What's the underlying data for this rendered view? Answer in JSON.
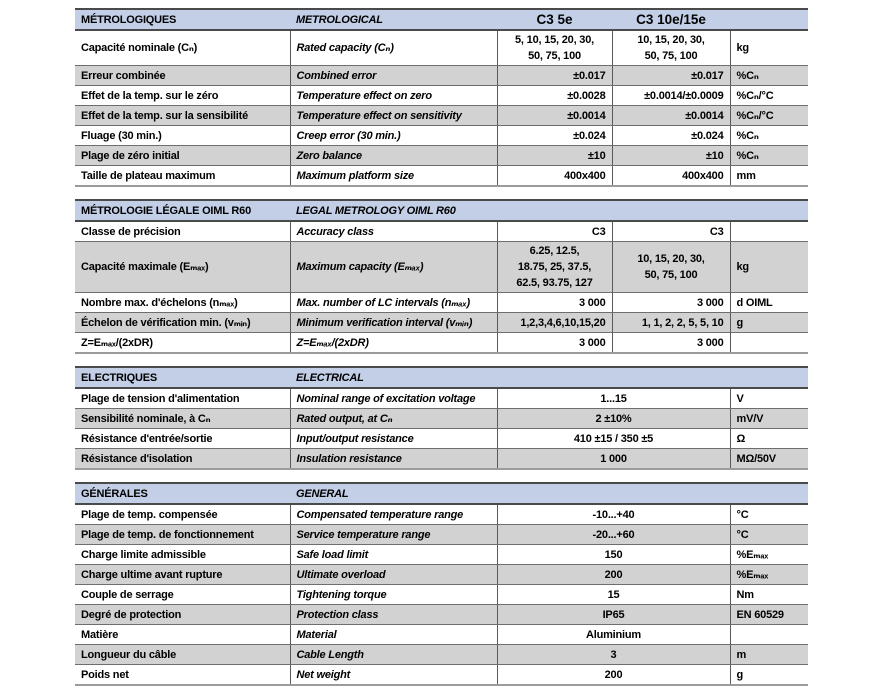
{
  "models": {
    "m1": "C3 5e",
    "m2": "C3 10e/15e"
  },
  "colors": {
    "header_bg": "#c3cfe7",
    "row_alt_bg": "#d2d2d2",
    "border_dark": "#4a4a4a",
    "border_mid": "#6e6e6e"
  },
  "sections": [
    {
      "id": "metrologiques",
      "title_fr": "MÉTROLOGIQUES",
      "title_en": "METROLOGICAL",
      "model_headers": true,
      "rows": [
        {
          "fr": "Capacité nominale (Cₙ)",
          "en": "Rated capacity (Cₙ)",
          "v1": "5, 10, 15, 20, 30,\n50, 75, 100",
          "v2": "10, 15, 20, 30,\n50, 75, 100",
          "unit": "kg",
          "center": true
        },
        {
          "fr": "Erreur combinée",
          "en": "Combined error",
          "v1": "±0.017",
          "v2": "±0.017",
          "unit": "%Cₙ"
        },
        {
          "fr": "Effet de la temp. sur le zéro",
          "en": "Temperature effect on zero",
          "v1": "±0.0028",
          "v2": "±0.0014/±0.0009",
          "unit": "%Cₙ/°C"
        },
        {
          "fr": "Effet de la temp. sur la sensibilité",
          "en": "Temperature effect on sensitivity",
          "v1": "±0.0014",
          "v2": "±0.0014",
          "unit": "%Cₙ/°C"
        },
        {
          "fr": "Fluage (30 min.)",
          "en": "Creep error (30 min.)",
          "v1": "±0.024",
          "v2": "±0.024",
          "unit": "%Cₙ"
        },
        {
          "fr": "Plage de zéro initial",
          "en": "Zero balance",
          "v1": "±10",
          "v2": "±10",
          "unit": "%Cₙ"
        },
        {
          "fr": "Taille de plateau maximum",
          "en": "Maximum platform size",
          "v1": "400x400",
          "v2": "400x400",
          "unit": "mm"
        }
      ]
    },
    {
      "id": "metrologie-legale",
      "title_fr": "MÉTROLOGIE LÉGALE OIML R60",
      "title_en": "LEGAL METROLOGY OIML R60",
      "model_headers": false,
      "rows": [
        {
          "fr": "Classe de précision",
          "en": "Accuracy class",
          "v1": "C3",
          "v2": "C3",
          "unit": ""
        },
        {
          "fr": "Capacité maximale (Eₘₐₓ)",
          "en": "Maximum capacity (Eₘₐₓ)",
          "v1": "6.25, 12.5,\n18.75, 25, 37.5,\n62.5, 93.75, 127",
          "v2": "10, 15, 20, 30,\n50, 75, 100",
          "unit": "kg",
          "center": true
        },
        {
          "fr": "Nombre max. d'échelons (nₘₐₓ)",
          "en": "Max. number of LC intervals (nₘₐₓ)",
          "v1": "3 000",
          "v2": "3 000",
          "unit": "d OIML"
        },
        {
          "fr": "Échelon de vérification min. (vₘᵢₙ)",
          "en": "Minimum verification interval (vₘᵢₙ)",
          "v1": "1,2,3,4,6,10,15,20",
          "v2": "1, 1, 2, 2, 5, 5, 10",
          "unit": "g",
          "fit": true
        },
        {
          "fr": "Z=Eₘₐₓ/(2xDR)",
          "en": "Z=Eₘₐₓ/(2xDR)",
          "v1": "3 000",
          "v2": "3 000",
          "unit": ""
        }
      ]
    },
    {
      "id": "electriques",
      "title_fr": "ELECTRIQUES",
      "title_en": "ELECTRICAL",
      "model_headers": false,
      "rows": [
        {
          "fr": "Plage de tension d'alimentation",
          "en": "Nominal range of excitation voltage",
          "v": "1...15",
          "unit": "V"
        },
        {
          "fr": "Sensibilité nominale, à Cₙ",
          "en": "Rated output, at Cₙ",
          "v": "2 ±10%",
          "unit": "mV/V"
        },
        {
          "fr": "Résistance d'entrée/sortie",
          "en": "Input/output resistance",
          "v": "410 ±15 / 350 ±5",
          "unit": "Ω"
        },
        {
          "fr": "Résistance d'isolation",
          "en": "Insulation resistance",
          "v": "1 000",
          "unit": "MΩ/50V"
        }
      ]
    },
    {
      "id": "generales",
      "title_fr": "GÉNÉRALES",
      "title_en": "GENERAL",
      "model_headers": false,
      "rows": [
        {
          "fr": "Plage de temp. compensée",
          "en": "Compensated temperature range",
          "v": "-10...+40",
          "unit": "°C"
        },
        {
          "fr": "Plage de temp. de fonctionnement",
          "en": "Service temperature range",
          "v": "-20...+60",
          "unit": "°C"
        },
        {
          "fr": "Charge limite admissible",
          "en": "Safe load limit",
          "v": "150",
          "unit": "%Eₘₐₓ"
        },
        {
          "fr": "Charge ultime avant rupture",
          "en": "Ultimate overload",
          "v": "200",
          "unit": "%Eₘₐₓ"
        },
        {
          "fr": "Couple de serrage",
          "en": "Tightening torque",
          "v": "15",
          "unit": "Nm"
        },
        {
          "fr": "Degré de protection",
          "en": "Protection class",
          "v": "IP65",
          "unit": "EN 60529"
        },
        {
          "fr": "Matière",
          "en": "Material",
          "v": "Aluminium",
          "unit": ""
        },
        {
          "fr": "Longueur du câble",
          "en": "Cable Length",
          "v": "3",
          "unit": "m"
        },
        {
          "fr": "Poids net",
          "en": "Net weight",
          "v": "200",
          "unit": "g"
        }
      ]
    }
  ]
}
